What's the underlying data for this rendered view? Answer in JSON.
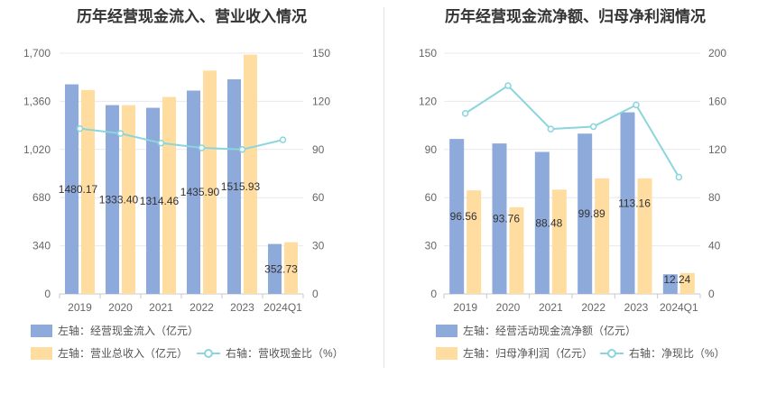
{
  "colors": {
    "bar1": "#8eaadb",
    "bar2": "#ffdca0",
    "line": "#8ad6dc",
    "grid": "#e6e9f0",
    "axis": "#c8c8c8"
  },
  "chart_data": [
    {
      "type": "bar",
      "title": "历年经营现金流入、营业收入情况",
      "categories": [
        "2019",
        "2020",
        "2021",
        "2022",
        "2023",
        "2024Q1"
      ],
      "left_axis": {
        "min": 0,
        "max": 1700,
        "ticks": [
          "0",
          "340",
          "680",
          "1,020",
          "1,360",
          "1,700"
        ]
      },
      "right_axis": {
        "min": 0,
        "max": 150,
        "ticks": [
          "0",
          "30",
          "60",
          "90",
          "120",
          "150"
        ]
      },
      "series": [
        {
          "name": "左轴：经营现金流入（亿元）",
          "axis": "left",
          "kind": "bar",
          "values": [
            1480.17,
            1333.4,
            1314.46,
            1435.9,
            1515.93,
            352.73
          ],
          "labels": [
            "1480.17",
            "1333.40",
            "1314.46",
            "1435.90",
            "1515.93",
            "352.73"
          ]
        },
        {
          "name": "左轴：营业总收入（亿元）",
          "axis": "left",
          "kind": "bar",
          "values": [
            1440,
            1333,
            1391,
            1577,
            1690,
            365
          ]
        },
        {
          "name": "右轴：营收现金比（%）",
          "axis": "right",
          "kind": "line",
          "values": [
            103,
            100,
            94,
            91,
            90,
            96
          ]
        }
      ]
    },
    {
      "type": "bar",
      "title": "历年经营现金流净额、归母净利润情况",
      "categories": [
        "2019",
        "2020",
        "2021",
        "2022",
        "2023",
        "2024Q1"
      ],
      "left_axis": {
        "min": 0,
        "max": 150,
        "ticks": [
          "0",
          "30",
          "60",
          "90",
          "120",
          "150"
        ]
      },
      "right_axis": {
        "min": 0,
        "max": 200,
        "ticks": [
          "0",
          "40",
          "80",
          "120",
          "160",
          "200"
        ]
      },
      "series": [
        {
          "name": "左轴：经营活动现金流净额（亿元）",
          "axis": "left",
          "kind": "bar",
          "values": [
            96.56,
            93.76,
            88.48,
            99.89,
            113.16,
            12.24
          ],
          "labels": [
            "96.56",
            "93.76",
            "88.48",
            "99.89",
            "113.16",
            "12.24"
          ]
        },
        {
          "name": "左轴：归母净利润（亿元）",
          "axis": "left",
          "kind": "bar",
          "values": [
            64.5,
            54,
            65,
            72,
            72,
            13
          ]
        },
        {
          "name": "右轴：净现比（%）",
          "axis": "right",
          "kind": "line",
          "values": [
            150,
            173,
            137,
            139,
            157,
            97
          ]
        }
      ]
    }
  ]
}
